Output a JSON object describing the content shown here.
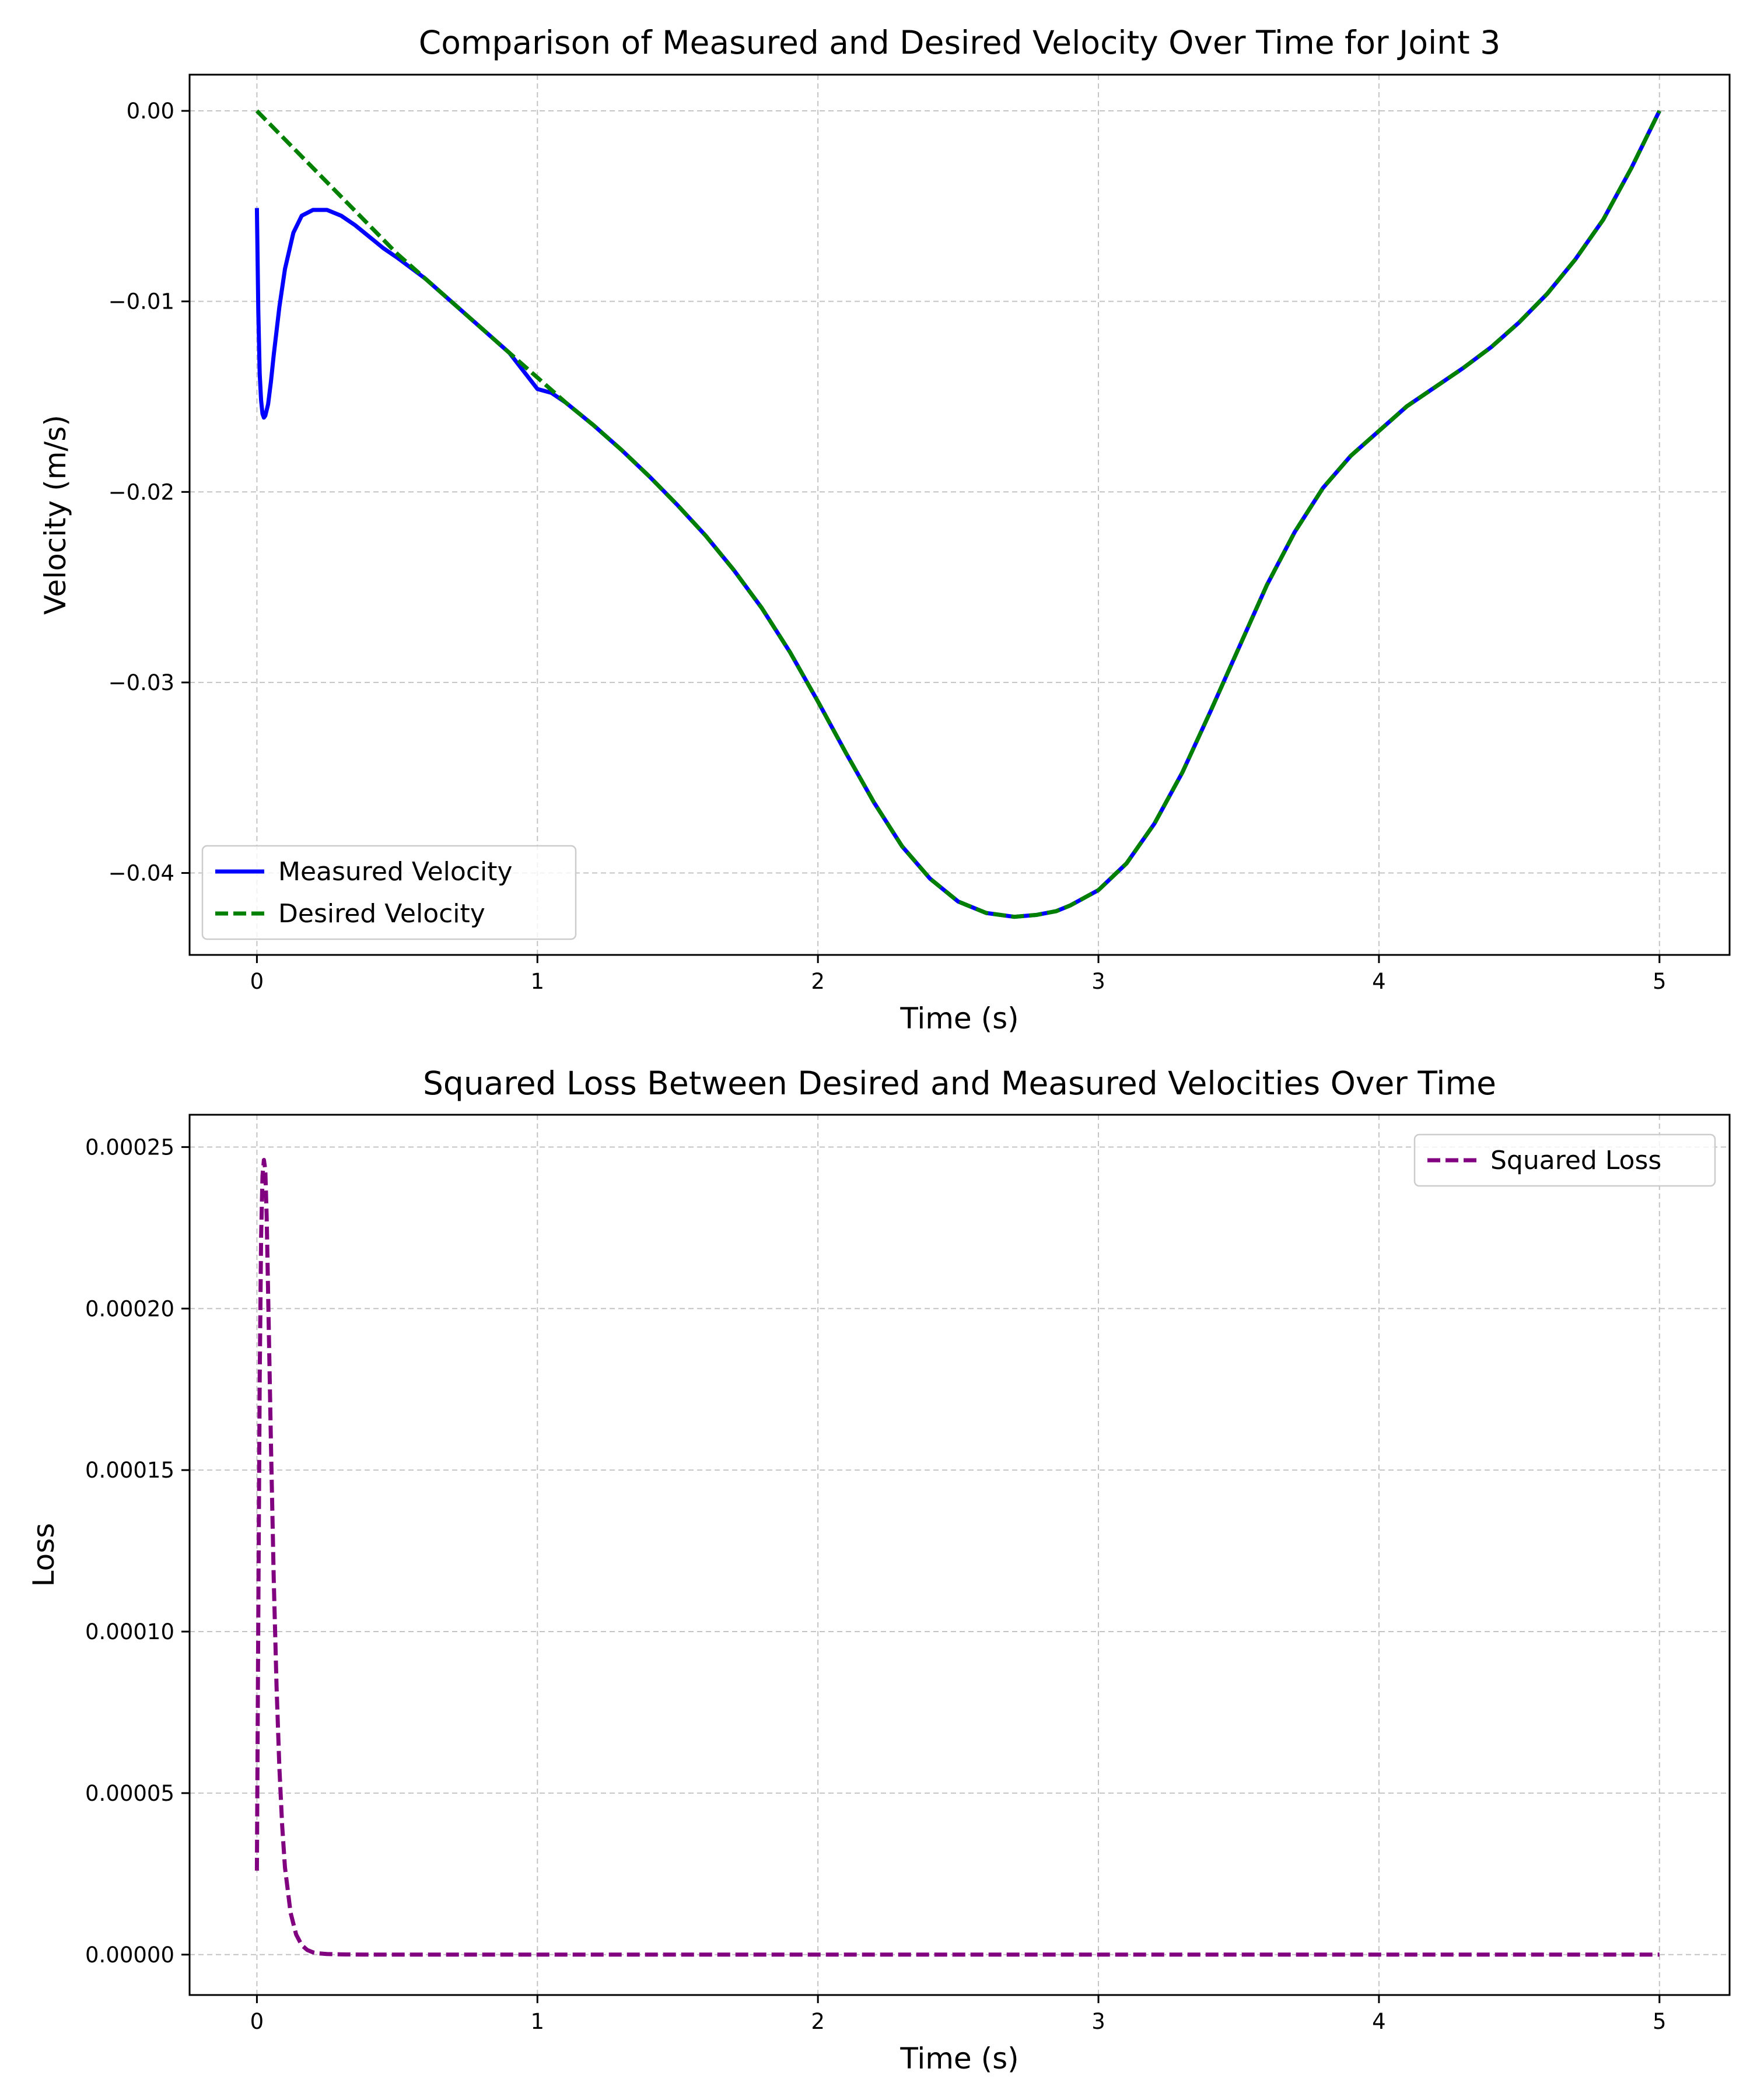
{
  "colors": {
    "measured": "#0000ff",
    "desired": "#008000",
    "loss": "#800080",
    "grid": "#b0b0b0",
    "legend_border": "#cccccc"
  },
  "chart_data": [
    {
      "type": "line",
      "title": "Comparison of Measured and Desired Velocity Over Time for Joint 3",
      "xlabel": "Time (s)",
      "ylabel": "Velocity (m/s)",
      "xlim": [
        -0.24,
        5.25
      ],
      "ylim": [
        -0.0443,
        0.0019
      ],
      "xticks": [
        0,
        1,
        2,
        3,
        4,
        5
      ],
      "xtick_labels": [
        "0",
        "1",
        "2",
        "3",
        "4",
        "5"
      ],
      "yticks": [
        0.0,
        -0.01,
        -0.02,
        -0.03,
        -0.04
      ],
      "ytick_labels": [
        "0.00",
        "−0.01",
        "−0.02",
        "−0.03",
        "−0.04"
      ],
      "grid": true,
      "legend": "lower-left",
      "series": [
        {
          "name": "Measured Velocity",
          "style": "solid",
          "x": [
            0.0,
            0.005,
            0.01,
            0.015,
            0.02,
            0.025,
            0.03,
            0.04,
            0.05,
            0.06,
            0.08,
            0.1,
            0.13,
            0.16,
            0.2,
            0.25,
            0.3,
            0.35,
            0.4,
            0.45,
            0.5,
            0.6,
            0.7,
            0.8,
            0.9,
            1.0,
            1.05,
            1.1,
            1.2,
            1.3,
            1.4,
            1.5,
            1.6,
            1.7,
            1.8,
            1.9,
            2.0,
            2.1,
            2.2,
            2.3,
            2.4,
            2.5,
            2.6,
            2.7,
            2.78,
            2.85,
            2.9,
            3.0,
            3.1,
            3.2,
            3.3,
            3.4,
            3.5,
            3.6,
            3.7,
            3.8,
            3.9,
            4.0,
            4.1,
            4.2,
            4.3,
            4.4,
            4.5,
            4.6,
            4.7,
            4.8,
            4.9,
            5.0
          ],
          "y": [
            -0.0051,
            -0.0105,
            -0.0138,
            -0.0152,
            -0.0159,
            -0.0161,
            -0.016,
            -0.0154,
            -0.0142,
            -0.0128,
            -0.0103,
            -0.0083,
            -0.0064,
            -0.0055,
            -0.0052,
            -0.0052,
            -0.0055,
            -0.006,
            -0.0066,
            -0.0072,
            -0.0077,
            -0.0088,
            -0.0101,
            -0.0114,
            -0.0127,
            -0.0146,
            -0.0148,
            -0.0153,
            -0.0165,
            -0.0178,
            -0.0192,
            -0.0207,
            -0.0223,
            -0.0241,
            -0.0261,
            -0.0284,
            -0.031,
            -0.0337,
            -0.0363,
            -0.0386,
            -0.0403,
            -0.0415,
            -0.0421,
            -0.0423,
            -0.0422,
            -0.042,
            -0.0417,
            -0.0409,
            -0.0395,
            -0.0374,
            -0.0347,
            -0.0315,
            -0.0282,
            -0.0249,
            -0.0221,
            -0.0198,
            -0.0181,
            -0.0168,
            -0.0155,
            -0.0145,
            -0.0135,
            -0.0124,
            -0.0111,
            -0.0096,
            -0.0078,
            -0.0057,
            -0.003,
            0.0
          ]
        },
        {
          "name": "Desired Velocity",
          "style": "dashed",
          "x": [
            0.0,
            0.1,
            0.2,
            0.3,
            0.4,
            0.5,
            0.6,
            0.7,
            0.8,
            0.9,
            1.0,
            1.1,
            1.2,
            1.3,
            1.4,
            1.5,
            1.6,
            1.7,
            1.8,
            1.9,
            2.0,
            2.1,
            2.2,
            2.3,
            2.4,
            2.5,
            2.6,
            2.7,
            2.78,
            2.85,
            2.9,
            3.0,
            3.1,
            3.2,
            3.3,
            3.4,
            3.5,
            3.6,
            3.7,
            3.8,
            3.9,
            4.0,
            4.1,
            4.2,
            4.3,
            4.4,
            4.5,
            4.6,
            4.7,
            4.8,
            4.9,
            5.0
          ],
          "y": [
            0.0,
            -0.0015,
            -0.003,
            -0.0045,
            -0.006,
            -0.0075,
            -0.0088,
            -0.0101,
            -0.0114,
            -0.0127,
            -0.014,
            -0.0153,
            -0.0165,
            -0.0178,
            -0.0192,
            -0.0207,
            -0.0223,
            -0.0241,
            -0.0261,
            -0.0284,
            -0.031,
            -0.0337,
            -0.0363,
            -0.0386,
            -0.0403,
            -0.0415,
            -0.0421,
            -0.0423,
            -0.0422,
            -0.042,
            -0.0417,
            -0.0409,
            -0.0395,
            -0.0374,
            -0.0347,
            -0.0315,
            -0.0282,
            -0.0249,
            -0.0221,
            -0.0198,
            -0.0181,
            -0.0168,
            -0.0155,
            -0.0145,
            -0.0135,
            -0.0124,
            -0.0111,
            -0.0096,
            -0.0078,
            -0.0057,
            -0.003,
            0.0
          ]
        }
      ]
    },
    {
      "type": "line",
      "title": "Squared Loss Between Desired and Measured Velocities Over Time",
      "xlabel": "Time (s)",
      "ylabel": "Loss",
      "xlim": [
        -0.24,
        5.25
      ],
      "ylim": [
        -1.25e-05,
        0.00026
      ],
      "xticks": [
        0,
        1,
        2,
        3,
        4,
        5
      ],
      "xtick_labels": [
        "0",
        "1",
        "2",
        "3",
        "4",
        "5"
      ],
      "yticks": [
        0.0,
        5e-05,
        0.0001,
        0.00015,
        0.0002,
        0.00025
      ],
      "ytick_labels": [
        "0.00000",
        "0.00005",
        "0.00010",
        "0.00015",
        "0.00020",
        "0.00025"
      ],
      "grid": true,
      "legend": "upper-right",
      "series": [
        {
          "name": "Squared Loss",
          "style": "dashed",
          "x": [
            0.0,
            0.005,
            0.01,
            0.015,
            0.02,
            0.025,
            0.03,
            0.035,
            0.04,
            0.05,
            0.06,
            0.07,
            0.08,
            0.09,
            0.1,
            0.12,
            0.14,
            0.16,
            0.18,
            0.2,
            0.22,
            0.25,
            0.28,
            0.32,
            0.4,
            0.5,
            1.0,
            2.0,
            3.0,
            4.0,
            5.0
          ],
          "y": [
            2.6e-05,
            0.000105,
            0.000178,
            0.000222,
            0.000241,
            0.000246,
            0.000243,
            0.000228,
            0.000205,
            0.000158,
            0.000116,
            8.3e-05,
            5.8e-05,
            4e-05,
            2.7e-05,
            1.3e-05,
            6.2e-06,
            2.9e-06,
            1.4e-06,
            7e-07,
            4e-07,
            2e-07,
            1e-07,
            5e-08,
            0.0,
            0.0,
            0.0,
            0.0,
            0.0,
            0.0,
            0.0
          ]
        }
      ]
    }
  ]
}
